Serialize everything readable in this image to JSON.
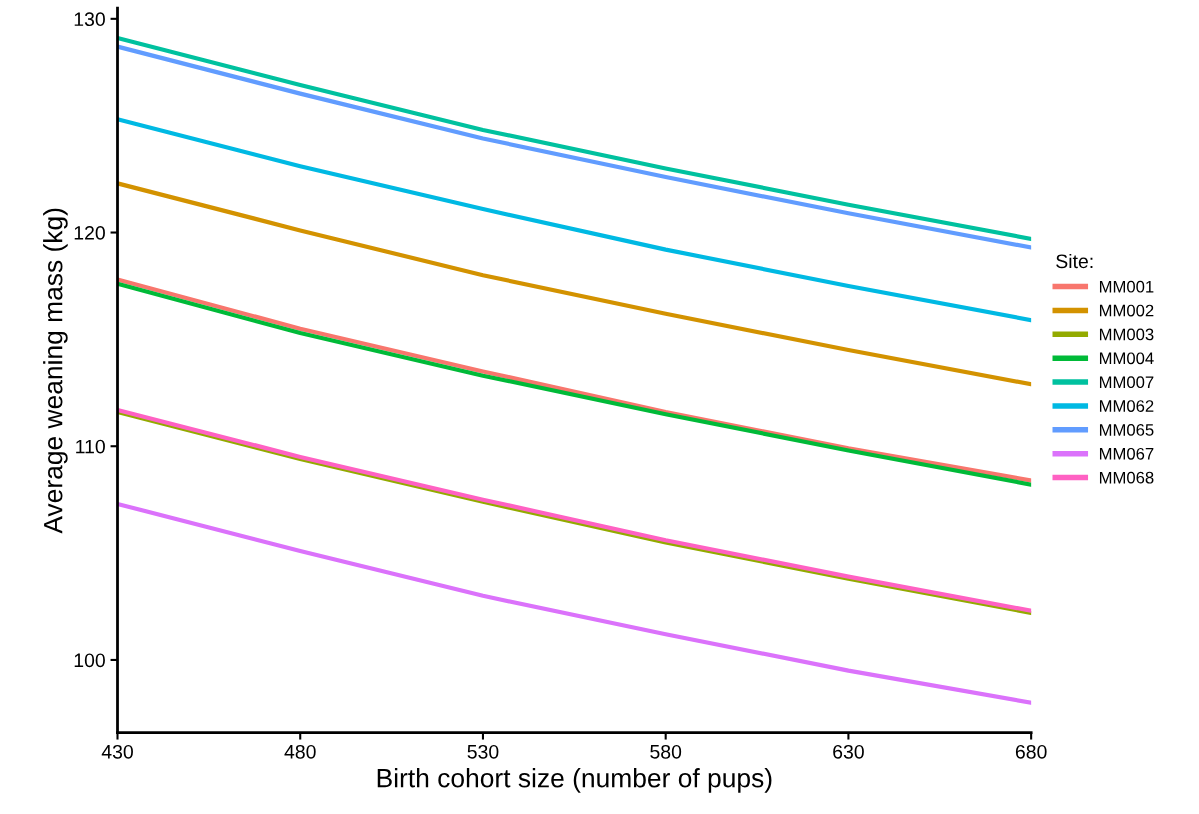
{
  "chart_data": {
    "type": "line",
    "xlabel": "Birth cohort size (number of pups)",
    "ylabel": "Average weaning mass (kg)",
    "legend_title": "Site:",
    "legend": "right",
    "grid": false,
    "x": [
      430,
      480,
      530,
      580,
      630,
      680
    ],
    "xlim": [
      430,
      680
    ],
    "xticks": [
      430,
      480,
      530,
      580,
      630,
      680
    ],
    "ylim": [
      96.6,
      130.5
    ],
    "yticks": [
      100,
      110,
      120,
      130
    ],
    "series": [
      {
        "name": "MM001",
        "color": "#f8766d",
        "values": [
          117.8,
          115.5,
          113.5,
          111.6,
          109.9,
          108.4
        ]
      },
      {
        "name": "MM002",
        "color": "#d39200",
        "values": [
          122.3,
          120.1,
          118.0,
          116.2,
          114.5,
          112.9
        ]
      },
      {
        "name": "MM003",
        "color": "#93aa00",
        "values": [
          111.6,
          109.4,
          107.4,
          105.5,
          103.8,
          102.2
        ]
      },
      {
        "name": "MM004",
        "color": "#00ba38",
        "values": [
          117.6,
          115.3,
          113.3,
          111.5,
          109.8,
          108.2
        ]
      },
      {
        "name": "MM007",
        "color": "#00c19f",
        "values": [
          129.1,
          126.9,
          124.8,
          123.0,
          121.3,
          119.7
        ]
      },
      {
        "name": "MM062",
        "color": "#00b9e3",
        "values": [
          125.3,
          123.1,
          121.1,
          119.2,
          117.5,
          115.9
        ]
      },
      {
        "name": "MM065",
        "color": "#619cff",
        "values": [
          128.7,
          126.5,
          124.4,
          122.6,
          120.9,
          119.3
        ]
      },
      {
        "name": "MM067",
        "color": "#db72fb",
        "values": [
          107.3,
          105.1,
          103.0,
          101.2,
          99.5,
          98.0
        ]
      },
      {
        "name": "MM068",
        "color": "#ff61c3",
        "values": [
          111.7,
          109.5,
          107.5,
          105.6,
          103.9,
          102.3
        ]
      }
    ]
  }
}
